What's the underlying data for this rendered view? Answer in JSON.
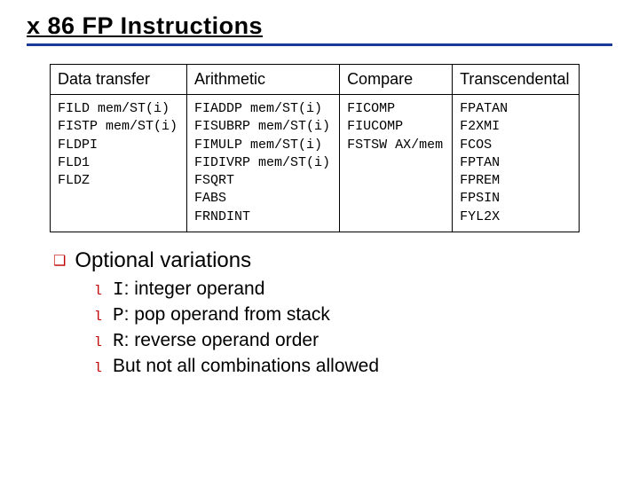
{
  "title": "x 86 FP Instructions",
  "table": {
    "headers": [
      "Data transfer",
      "Arithmetic",
      "Compare",
      "Transcendental"
    ],
    "cols": [
      [
        "FILD  mem/ST(i)",
        "FISTP mem/ST(i)",
        "FLDPI",
        "FLD1",
        "FLDZ"
      ],
      [
        "FIADDP  mem/ST(i)",
        "FISUBRP mem/ST(i)",
        "FIMULP  mem/ST(i)",
        "FIDIVRP mem/ST(i)",
        "FSQRT",
        "FABS",
        "FRNDINT"
      ],
      [
        "FICOMP",
        "FIUCOMP",
        "FSTSW AX/mem"
      ],
      [
        "FPATAN",
        "F2XMI",
        "FCOS",
        "FPTAN",
        "FPREM",
        "FPSIN",
        "FYL2X"
      ]
    ]
  },
  "section": "Optional variations",
  "items": [
    {
      "code": "I",
      "text": ": integer operand"
    },
    {
      "code": "P",
      "text": ": pop operand from stack"
    },
    {
      "code": "R",
      "text": ": reverse operand order"
    },
    {
      "code": "",
      "text": "But not all combinations allowed"
    }
  ],
  "colors": {
    "rule": "#1a3a9a",
    "bullet": "#c00000"
  }
}
